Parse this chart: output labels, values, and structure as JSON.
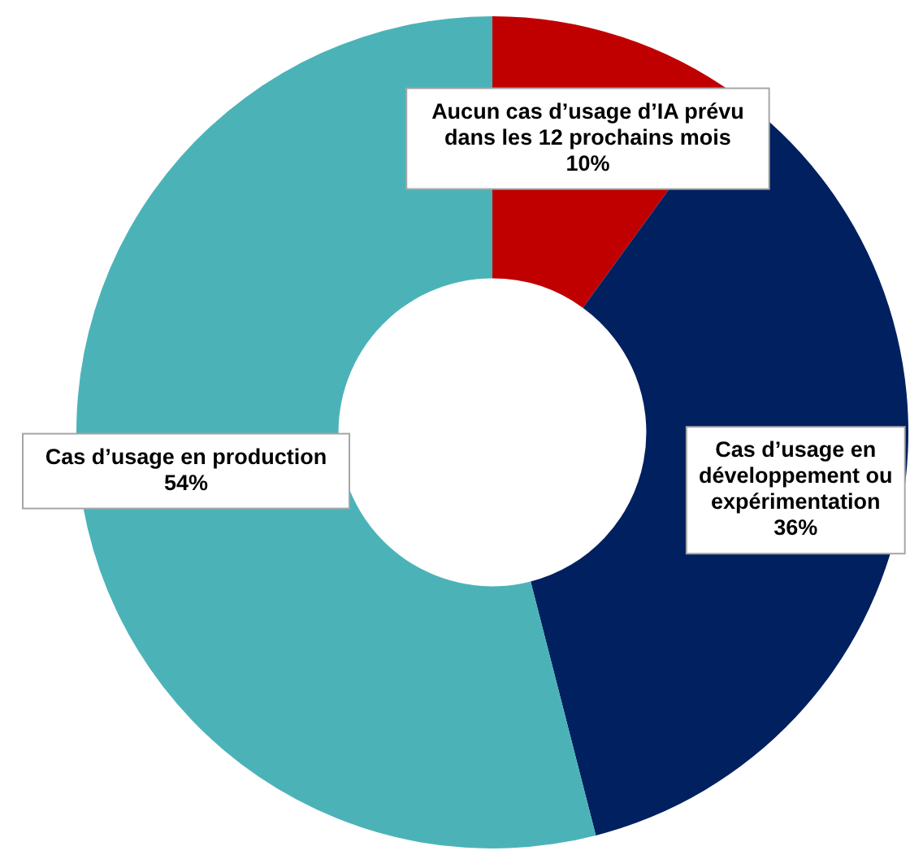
{
  "chart_data": {
    "type": "donut",
    "categories": [
      "Aucun cas d’usage d’IA prévu dans les 12 prochains mois",
      "Cas d’usage en développement ou expérimentation",
      "Cas d’usage en production"
    ],
    "values": [
      10,
      36,
      54
    ],
    "colors": [
      "#c00000",
      "#002060",
      "#4bb3b8"
    ],
    "value_labels": [
      "10%",
      "36%",
      "54%"
    ]
  }
}
